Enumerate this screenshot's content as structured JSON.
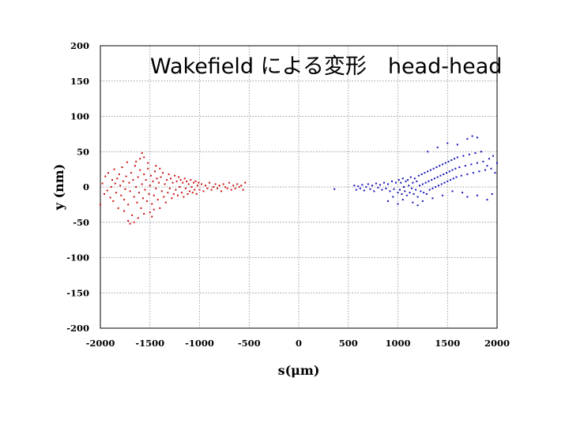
{
  "chart_data": {
    "type": "scatter",
    "title": "Wakefield による変形　head-head",
    "xlabel": "s(μm)",
    "ylabel": "y (nm)",
    "xlim": [
      -2000,
      2000
    ],
    "ylim": [
      -200,
      200
    ],
    "x_ticks": [
      "-2000",
      "-1500",
      "-1000",
      "-500",
      "0",
      "500",
      "1000",
      "1500",
      "2000"
    ],
    "y_ticks": [
      "200",
      "150",
      "100",
      "50",
      "0",
      "-50",
      "-100",
      "-150",
      "-200"
    ],
    "grid": true,
    "series": [
      {
        "color": "#cc1111",
        "points": [
          [
            -2000,
            -25
          ],
          [
            -1980,
            5
          ],
          [
            -1960,
            -10
          ],
          [
            -1950,
            15
          ],
          [
            -1930,
            -5
          ],
          [
            -1920,
            20
          ],
          [
            -1900,
            -15
          ],
          [
            -1890,
            0
          ],
          [
            -1880,
            10
          ],
          [
            -1870,
            -20
          ],
          [
            -1860,
            25
          ],
          [
            -1850,
            5
          ],
          [
            -1840,
            -8
          ],
          [
            -1830,
            12
          ],
          [
            -1820,
            -30
          ],
          [
            -1810,
            18
          ],
          [
            -1800,
            2
          ],
          [
            -1790,
            -12
          ],
          [
            -1780,
            28
          ],
          [
            -1770,
            8
          ],
          [
            -1760,
            -18
          ],
          [
            -1750,
            -3
          ],
          [
            -1740,
            15
          ],
          [
            -1730,
            35
          ],
          [
            -1720,
            -25
          ],
          [
            -1710,
            6
          ],
          [
            -1700,
            -6
          ],
          [
            -1690,
            20
          ],
          [
            -1680,
            -40
          ],
          [
            -1670,
            10
          ],
          [
            -1660,
            -14
          ],
          [
            -1650,
            30
          ],
          [
            -1640,
            0
          ],
          [
            -1630,
            -22
          ],
          [
            -1620,
            14
          ],
          [
            -1610,
            -8
          ],
          [
            -1600,
            24
          ],
          [
            -1590,
            -30
          ],
          [
            -1580,
            4
          ],
          [
            -1570,
            -16
          ],
          [
            -1560,
            18
          ],
          [
            -1550,
            -4
          ],
          [
            -1540,
            10
          ],
          [
            -1530,
            -20
          ],
          [
            -1520,
            26
          ],
          [
            -1510,
            -10
          ],
          [
            -1500,
            2
          ],
          [
            -1490,
            16
          ],
          [
            -1480,
            -24
          ],
          [
            -1470,
            8
          ],
          [
            -1460,
            -12
          ],
          [
            -1450,
            22
          ],
          [
            -1440,
            -2
          ],
          [
            -1430,
            12
          ],
          [
            -1420,
            -18
          ],
          [
            -1410,
            6
          ],
          [
            -1400,
            -30
          ],
          [
            -1390,
            14
          ],
          [
            -1380,
            -6
          ],
          [
            -1370,
            20
          ],
          [
            -1360,
            -14
          ],
          [
            -1350,
            4
          ],
          [
            -1340,
            -22
          ],
          [
            -1330,
            10
          ],
          [
            -1320,
            -8
          ],
          [
            -1310,
            18
          ],
          [
            -1300,
            -2
          ],
          [
            -1290,
            12
          ],
          [
            -1280,
            -16
          ],
          [
            -1270,
            6
          ],
          [
            -1260,
            -10
          ],
          [
            -1250,
            16
          ],
          [
            -1240,
            -4
          ],
          [
            -1230,
            8
          ],
          [
            -1220,
            -12
          ],
          [
            -1210,
            14
          ],
          [
            -1200,
            0
          ],
          [
            -1190,
            10
          ],
          [
            -1180,
            -8
          ],
          [
            -1170,
            6
          ],
          [
            -1160,
            -14
          ],
          [
            -1150,
            12
          ],
          [
            -1140,
            -2
          ],
          [
            -1130,
            8
          ],
          [
            -1120,
            -10
          ],
          [
            -1110,
            4
          ],
          [
            -1100,
            -6
          ],
          [
            -1090,
            10
          ],
          [
            -1080,
            0
          ],
          [
            -1070,
            -8
          ],
          [
            -1060,
            6
          ],
          [
            -1050,
            -4
          ],
          [
            -1040,
            8
          ],
          [
            -1030,
            -10
          ],
          [
            -1020,
            2
          ],
          [
            -1010,
            6
          ],
          [
            -1000,
            -4
          ],
          [
            -980,
            4
          ],
          [
            -960,
            -6
          ],
          [
            -940,
            2
          ],
          [
            -920,
            -2
          ],
          [
            -900,
            6
          ],
          [
            -880,
            -4
          ],
          [
            -860,
            0
          ],
          [
            -840,
            4
          ],
          [
            -820,
            -2
          ],
          [
            -800,
            2
          ],
          [
            -780,
            -6
          ],
          [
            -760,
            4
          ],
          [
            -740,
            0
          ],
          [
            -720,
            -2
          ],
          [
            -700,
            6
          ],
          [
            -680,
            -4
          ],
          [
            -660,
            2
          ],
          [
            -640,
            -2
          ],
          [
            -620,
            4
          ],
          [
            -600,
            0
          ],
          [
            -580,
            2
          ],
          [
            -560,
            -4
          ],
          [
            -540,
            6
          ],
          [
            -1580,
            48
          ],
          [
            -1620,
            -44
          ],
          [
            -1700,
            -52
          ],
          [
            -1560,
            -38
          ],
          [
            -1480,
            -42
          ],
          [
            -1520,
            34
          ],
          [
            -1440,
            30
          ],
          [
            -1600,
            40
          ],
          [
            -1400,
            26
          ],
          [
            -1640,
            36
          ],
          [
            -1560,
            42
          ],
          [
            -1720,
            -48
          ],
          [
            -1760,
            -34
          ],
          [
            -1660,
            -50
          ],
          [
            -1500,
            -36
          ],
          [
            -1460,
            -32
          ]
        ]
      },
      {
        "color": "#1111bb",
        "points": [
          [
            360,
            -3
          ],
          [
            560,
            2
          ],
          [
            580,
            -4
          ],
          [
            600,
            1
          ],
          [
            620,
            -2
          ],
          [
            640,
            3
          ],
          [
            660,
            -5
          ],
          [
            680,
            0
          ],
          [
            700,
            4
          ],
          [
            720,
            -3
          ],
          [
            740,
            2
          ],
          [
            760,
            -6
          ],
          [
            780,
            5
          ],
          [
            800,
            -1
          ],
          [
            820,
            3
          ],
          [
            840,
            -4
          ],
          [
            860,
            6
          ],
          [
            880,
            -2
          ],
          [
            900,
            4
          ],
          [
            920,
            -6
          ],
          [
            940,
            8
          ],
          [
            960,
            -3
          ],
          [
            980,
            6
          ],
          [
            1000,
            -8
          ],
          [
            1010,
            10
          ],
          [
            1020,
            -4
          ],
          [
            1030,
            6
          ],
          [
            1040,
            -10
          ],
          [
            1050,
            12
          ],
          [
            1060,
            0
          ],
          [
            1070,
            -6
          ],
          [
            1080,
            8
          ],
          [
            1090,
            -12
          ],
          [
            1100,
            10
          ],
          [
            1110,
            2
          ],
          [
            1120,
            -8
          ],
          [
            1130,
            14
          ],
          [
            1140,
            -2
          ],
          [
            1150,
            6
          ],
          [
            1160,
            -10
          ],
          [
            1170,
            12
          ],
          [
            1180,
            -4
          ],
          [
            1190,
            8
          ],
          [
            1200,
            -14
          ],
          [
            1210,
            16
          ],
          [
            1220,
            2
          ],
          [
            1230,
            -6
          ],
          [
            1240,
            18
          ],
          [
            1250,
            4
          ],
          [
            1260,
            -8
          ],
          [
            1270,
            20
          ],
          [
            1280,
            6
          ],
          [
            1290,
            -10
          ],
          [
            1300,
            22
          ],
          [
            1310,
            8
          ],
          [
            1320,
            -4
          ],
          [
            1330,
            24
          ],
          [
            1340,
            10
          ],
          [
            1350,
            -2
          ],
          [
            1360,
            26
          ],
          [
            1370,
            12
          ],
          [
            1380,
            0
          ],
          [
            1390,
            28
          ],
          [
            1400,
            14
          ],
          [
            1410,
            2
          ],
          [
            1420,
            30
          ],
          [
            1430,
            16
          ],
          [
            1440,
            4
          ],
          [
            1450,
            32
          ],
          [
            1460,
            18
          ],
          [
            1470,
            6
          ],
          [
            1480,
            34
          ],
          [
            1490,
            20
          ],
          [
            1500,
            8
          ],
          [
            1510,
            36
          ],
          [
            1520,
            22
          ],
          [
            1530,
            10
          ],
          [
            1540,
            38
          ],
          [
            1550,
            24
          ],
          [
            1560,
            12
          ],
          [
            1570,
            40
          ],
          [
            1580,
            26
          ],
          [
            1590,
            14
          ],
          [
            1600,
            42
          ],
          [
            1620,
            28
          ],
          [
            1640,
            16
          ],
          [
            1660,
            44
          ],
          [
            1680,
            30
          ],
          [
            1700,
            18
          ],
          [
            1720,
            46
          ],
          [
            1740,
            32
          ],
          [
            1760,
            20
          ],
          [
            1780,
            48
          ],
          [
            1800,
            34
          ],
          [
            1820,
            22
          ],
          [
            1840,
            50
          ],
          [
            1860,
            36
          ],
          [
            1880,
            24
          ],
          [
            1900,
            30
          ],
          [
            1920,
            40
          ],
          [
            1940,
            26
          ],
          [
            1960,
            44
          ],
          [
            1980,
            20
          ],
          [
            2000,
            34
          ],
          [
            1300,
            50
          ],
          [
            1400,
            56
          ],
          [
            1500,
            62
          ],
          [
            1600,
            60
          ],
          [
            1700,
            68
          ],
          [
            1750,
            72
          ],
          [
            1800,
            70
          ],
          [
            1650,
            -8
          ],
          [
            1700,
            -14
          ],
          [
            1800,
            -12
          ],
          [
            1900,
            -18
          ],
          [
            1950,
            -10
          ],
          [
            1550,
            -6
          ],
          [
            1450,
            -12
          ],
          [
            1350,
            -16
          ],
          [
            1250,
            -20
          ],
          [
            1150,
            -22
          ],
          [
            1050,
            -18
          ],
          [
            950,
            -14
          ],
          [
            900,
            -20
          ],
          [
            1000,
            -24
          ],
          [
            1200,
            -26
          ]
        ]
      }
    ]
  }
}
